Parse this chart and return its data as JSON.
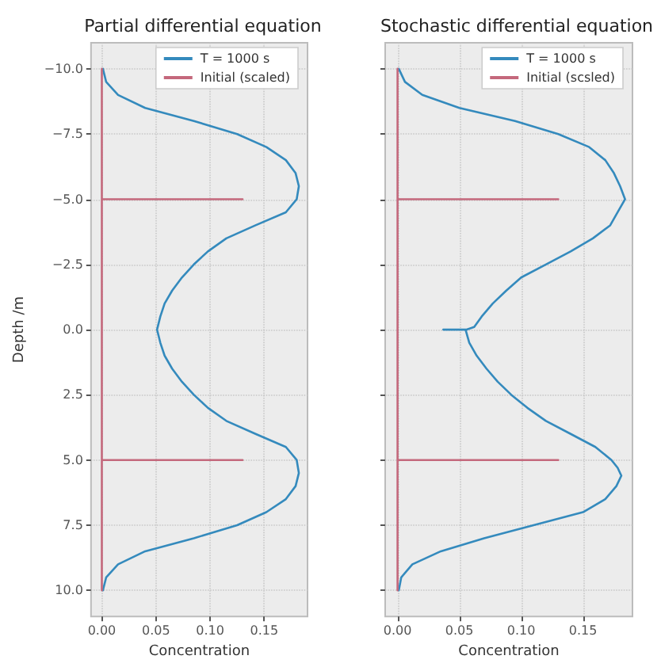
{
  "chart_data": [
    {
      "type": "line",
      "title": "Partial differential equation",
      "xlabel": "Concentration",
      "ylabel": "Depth /m",
      "xlim": [
        -0.01,
        0.19
      ],
      "ylim": [
        11,
        -11
      ],
      "xticks": [
        {
          "value": 0,
          "label": "0.00"
        },
        {
          "value": 0.05,
          "label": "0.05"
        },
        {
          "value": 0.1,
          "label": "0.10"
        },
        {
          "value": 0.15,
          "label": "0.15"
        }
      ],
      "yticks": [
        {
          "value": -10,
          "label": "−10.0"
        },
        {
          "value": -7.5,
          "label": "−7.5"
        },
        {
          "value": -5,
          "label": "−5.0"
        },
        {
          "value": -2.5,
          "label": "−2.5"
        },
        {
          "value": 0,
          "label": "0.0"
        },
        {
          "value": 2.5,
          "label": "2.5"
        },
        {
          "value": 5,
          "label": "5.0"
        },
        {
          "value": 7.5,
          "label": "7.5"
        },
        {
          "value": 10,
          "label": "10.0"
        }
      ],
      "grid": true,
      "legend": "top right",
      "marker": "none",
      "line_style": "solid",
      "series": [
        {
          "name": "T = 1000 s",
          "color": "#348abd",
          "x": [
            0.001,
            0.004,
            0.015,
            0.04,
            0.085,
            0.125,
            0.152,
            0.17,
            0.179,
            0.182,
            0.18,
            0.17,
            0.142,
            0.115,
            0.098,
            0.085,
            0.074,
            0.065,
            0.058,
            0.054,
            0.051,
            0.054,
            0.058,
            0.065,
            0.074,
            0.085,
            0.098,
            0.115,
            0.142,
            0.17,
            0.18,
            0.182,
            0.179,
            0.17,
            0.152,
            0.125,
            0.085,
            0.04,
            0.015,
            0.004,
            0.001
          ],
          "values": [
            -10,
            -9.5,
            -9,
            -8.5,
            -8,
            -7.5,
            -7,
            -6.5,
            -6,
            -5.5,
            -5,
            -4.5,
            -4,
            -3.5,
            -3,
            -2.5,
            -2,
            -1.5,
            -1,
            -0.5,
            0,
            0.5,
            1,
            1.5,
            2,
            2.5,
            3,
            3.5,
            4,
            4.5,
            5,
            5.5,
            6,
            6.5,
            7,
            7.5,
            8,
            8.5,
            9,
            9.5,
            10
          ]
        },
        {
          "name": "Initial (scaled)",
          "color": "#c4687c",
          "x": [
            0,
            0,
            0.13,
            0,
            0,
            0.13,
            0,
            0
          ],
          "values": [
            -10,
            -5,
            -5,
            -5,
            5,
            5,
            5,
            10
          ]
        }
      ]
    },
    {
      "type": "line",
      "title": "Stochastic differential equation",
      "xlabel": "Concentration",
      "xlim": [
        -0.01,
        0.19
      ],
      "ylim": [
        11,
        -11
      ],
      "xticks": [
        {
          "value": 0,
          "label": "0.00"
        },
        {
          "value": 0.05,
          "label": "0.05"
        },
        {
          "value": 0.1,
          "label": "0.10"
        },
        {
          "value": 0.15,
          "label": "0.15"
        }
      ],
      "yticks": [
        {
          "value": -10,
          "label": null
        },
        {
          "value": -7.5,
          "label": null
        },
        {
          "value": -5,
          "label": null
        },
        {
          "value": -2.5,
          "label": null
        },
        {
          "value": 0,
          "label": null
        },
        {
          "value": 2.5,
          "label": null
        },
        {
          "value": 5,
          "label": null
        },
        {
          "value": 7.5,
          "label": null
        },
        {
          "value": 10,
          "label": null
        }
      ],
      "tick_labels": "x",
      "grid": true,
      "legend": "top right",
      "marker": "none",
      "line_style": "solid",
      "series": [
        {
          "name": "T = 1000 s",
          "color": "#348abd",
          "x": [
            0.001,
            0.006,
            0.02,
            0.05,
            0.095,
            0.13,
            0.155,
            0.168,
            0.175,
            0.18,
            0.184,
            0.178,
            0.172,
            0.158,
            0.14,
            0.12,
            0.1,
            0.088,
            0.077,
            0.068,
            0.062,
            0.056,
            0.053,
            0.037,
            0.055,
            0.058,
            0.064,
            0.072,
            0.081,
            0.092,
            0.105,
            0.12,
            0.14,
            0.16,
            0.173,
            0.178,
            0.181,
            0.177,
            0.168,
            0.15,
            0.11,
            0.07,
            0.035,
            0.012,
            0.003,
            0.001
          ],
          "values": [
            -10,
            -9.5,
            -9,
            -8.5,
            -8,
            -7.5,
            -7,
            -6.5,
            -6,
            -5.5,
            -5,
            -4.5,
            -4,
            -3.5,
            -3,
            -2.5,
            -2,
            -1.5,
            -1,
            -0.5,
            -0.1,
            0,
            0,
            0,
            0,
            0.5,
            1,
            1.5,
            2,
            2.5,
            3,
            3.5,
            4,
            4.5,
            5,
            5.3,
            5.6,
            6,
            6.5,
            7,
            7.5,
            8,
            8.5,
            9,
            9.5,
            10
          ]
        },
        {
          "name": "Initial (scsled)",
          "color": "#c4687c",
          "x": [
            0,
            0,
            0.13,
            0,
            0,
            0.13,
            0,
            0
          ],
          "values": [
            -10,
            -5,
            -5,
            -5,
            5,
            5,
            5,
            10
          ]
        }
      ]
    }
  ]
}
